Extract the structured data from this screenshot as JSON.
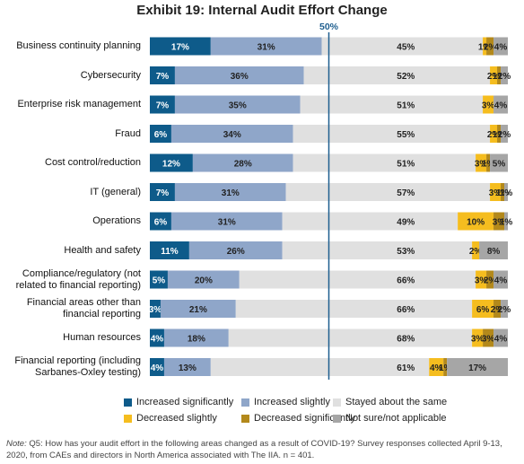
{
  "chart_data": {
    "type": "bar",
    "stacked": true,
    "orientation": "horizontal",
    "title": "Exhibit 19: Internal Audit Effort Change",
    "reference_line": {
      "value": 50,
      "label": "50%"
    },
    "xlim": [
      0,
      100
    ],
    "categories": [
      "Business continuity planning",
      "Cybersecurity",
      "Enterprise risk management",
      "Fraud",
      "Cost control/reduction",
      "IT (general)",
      "Operations",
      "Health and safety",
      "Compliance/regulatory (not related to financial reporting)",
      "Financial areas other than financial reporting",
      "Human resources",
      "Financial reporting (including Sarbanes-Oxley testing)"
    ],
    "series": [
      {
        "name": "Increased significantly",
        "color": "#0e5b8a",
        "values": [
          17,
          7,
          7,
          6,
          12,
          7,
          6,
          11,
          5,
          3,
          4,
          4
        ]
      },
      {
        "name": "Increased slightly",
        "color": "#8fa6c9",
        "values": [
          31,
          36,
          35,
          34,
          28,
          31,
          31,
          26,
          20,
          21,
          18,
          13
        ]
      },
      {
        "name": "Stayed about the same",
        "color": "#e0e0e0",
        "values": [
          45,
          52,
          51,
          55,
          51,
          57,
          49,
          53,
          66,
          66,
          68,
          61
        ]
      },
      {
        "name": "Decreased slightly",
        "color": "#f5bd1f",
        "values": [
          1,
          2,
          3,
          2,
          3,
          3,
          10,
          2,
          3,
          6,
          3,
          4
        ]
      },
      {
        "name": "Decreased significantly",
        "color": "#b3891b",
        "values": [
          2,
          1,
          0,
          1,
          1,
          1,
          3,
          0,
          2,
          2,
          3,
          1
        ]
      },
      {
        "name": "Not sure/not applicable",
        "color": "#a6a6a6",
        "values": [
          4,
          2,
          4,
          2,
          5,
          1,
          1,
          8,
          4,
          2,
          4,
          17
        ]
      }
    ]
  },
  "note": {
    "prefix": "Note:",
    "text": "Q5: How has your audit effort in the following areas changed as a result of COVID-19? Survey responses collected April 9-13, 2020, from CAEs and directors in North America associated with The IIA. n = 401."
  }
}
